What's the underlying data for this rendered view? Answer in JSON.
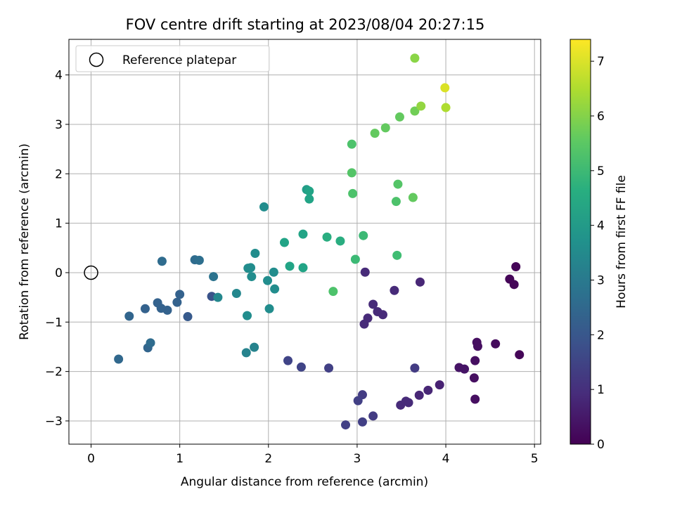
{
  "chart_data": {
    "type": "scatter",
    "title": "FOV centre drift starting at 2023/08/04 20:27:15",
    "xlabel": "Angular distance from reference (arcmin)",
    "ylabel": "Rotation from reference (arcmin)",
    "colorbar_label": "Hours from first FF file",
    "xlim": [
      -0.25,
      5.07
    ],
    "ylim": [
      -3.47,
      4.72
    ],
    "x_ticks": [
      0,
      1,
      2,
      3,
      4,
      5
    ],
    "y_ticks": [
      -3,
      -2,
      -1,
      0,
      1,
      2,
      3,
      4
    ],
    "color_range": [
      0,
      7.4
    ],
    "color_ticks": [
      0,
      1,
      2,
      3,
      4,
      5,
      6,
      7
    ],
    "colormap": "viridis",
    "grid": true,
    "legend_position": "top-left",
    "reference": {
      "label": "Reference platepar",
      "x": 0,
      "y": 0
    },
    "points": [
      {
        "x": 4.79,
        "y": 0.12,
        "t": 0.1
      },
      {
        "x": 4.72,
        "y": -0.13,
        "t": 0.1
      },
      {
        "x": 4.77,
        "y": -0.24,
        "t": 0.1
      },
      {
        "x": 4.83,
        "y": -1.66,
        "t": 0.1
      },
      {
        "x": 4.56,
        "y": -1.44,
        "t": 0.2
      },
      {
        "x": 4.35,
        "y": -1.41,
        "t": 0.3
      },
      {
        "x": 4.36,
        "y": -1.49,
        "t": 0.3
      },
      {
        "x": 4.33,
        "y": -1.78,
        "t": 0.3
      },
      {
        "x": 4.32,
        "y": -2.13,
        "t": 0.3
      },
      {
        "x": 4.33,
        "y": -2.56,
        "t": 0.3
      },
      {
        "x": 4.15,
        "y": -1.92,
        "t": 0.4
      },
      {
        "x": 4.21,
        "y": -1.95,
        "t": 0.4
      },
      {
        "x": 3.93,
        "y": -2.27,
        "t": 0.7
      },
      {
        "x": 3.8,
        "y": -2.38,
        "t": 0.8
      },
      {
        "x": 3.7,
        "y": -2.48,
        "t": 0.8
      },
      {
        "x": 3.71,
        "y": -0.19,
        "t": 0.8
      },
      {
        "x": 3.49,
        "y": -2.68,
        "t": 0.9
      },
      {
        "x": 3.58,
        "y": -2.63,
        "t": 0.9
      },
      {
        "x": 3.55,
        "y": -2.6,
        "t": 0.9
      },
      {
        "x": 3.42,
        "y": -0.36,
        "t": 0.9
      },
      {
        "x": 3.29,
        "y": -0.85,
        "t": 0.9
      },
      {
        "x": 3.23,
        "y": -0.79,
        "t": 0.9
      },
      {
        "x": 3.18,
        "y": -0.64,
        "t": 0.9
      },
      {
        "x": 3.12,
        "y": -0.92,
        "t": 0.9
      },
      {
        "x": 3.08,
        "y": -1.04,
        "t": 0.9
      },
      {
        "x": 3.09,
        "y": 0.01,
        "t": 0.9
      },
      {
        "x": 3.65,
        "y": -1.93,
        "t": 1.3
      },
      {
        "x": 3.18,
        "y": -2.9,
        "t": 1.3
      },
      {
        "x": 3.06,
        "y": -2.47,
        "t": 1.3
      },
      {
        "x": 3.01,
        "y": -2.59,
        "t": 1.4
      },
      {
        "x": 3.06,
        "y": -3.02,
        "t": 1.4
      },
      {
        "x": 2.87,
        "y": -3.08,
        "t": 1.4
      },
      {
        "x": 2.68,
        "y": -1.93,
        "t": 1.4
      },
      {
        "x": 2.37,
        "y": -1.91,
        "t": 1.5
      },
      {
        "x": 2.22,
        "y": -1.78,
        "t": 1.5
      },
      {
        "x": 1.36,
        "y": -0.48,
        "t": 1.9
      },
      {
        "x": 1.09,
        "y": -0.89,
        "t": 2.1
      },
      {
        "x": 1.0,
        "y": -0.44,
        "t": 2.3
      },
      {
        "x": 0.97,
        "y": -0.6,
        "t": 2.3
      },
      {
        "x": 0.86,
        "y": -0.76,
        "t": 2.3
      },
      {
        "x": 0.79,
        "y": -0.72,
        "t": 2.3
      },
      {
        "x": 0.75,
        "y": -0.61,
        "t": 2.3
      },
      {
        "x": 0.61,
        "y": -0.73,
        "t": 2.3
      },
      {
        "x": 0.43,
        "y": -0.88,
        "t": 2.4
      },
      {
        "x": 0.31,
        "y": -1.75,
        "t": 2.5
      },
      {
        "x": 0.64,
        "y": -1.52,
        "t": 2.4
      },
      {
        "x": 0.67,
        "y": -1.42,
        "t": 2.6
      },
      {
        "x": 0.8,
        "y": 0.23,
        "t": 2.6
      },
      {
        "x": 1.17,
        "y": 0.26,
        "t": 2.6
      },
      {
        "x": 1.22,
        "y": 0.25,
        "t": 2.7
      },
      {
        "x": 1.38,
        "y": -0.08,
        "t": 2.8
      },
      {
        "x": 1.43,
        "y": -0.5,
        "t": 3.4
      },
      {
        "x": 1.64,
        "y": -0.42,
        "t": 3.4
      },
      {
        "x": 1.75,
        "y": -1.62,
        "t": 3.3
      },
      {
        "x": 1.84,
        "y": -1.51,
        "t": 3.3
      },
      {
        "x": 1.76,
        "y": -0.87,
        "t": 3.6
      },
      {
        "x": 1.77,
        "y": 0.09,
        "t": 3.6
      },
      {
        "x": 1.8,
        "y": 0.1,
        "t": 3.6
      },
      {
        "x": 1.81,
        "y": -0.08,
        "t": 3.6
      },
      {
        "x": 1.85,
        "y": 0.39,
        "t": 3.6
      },
      {
        "x": 1.95,
        "y": 1.33,
        "t": 3.6
      },
      {
        "x": 1.99,
        "y": -0.16,
        "t": 3.6
      },
      {
        "x": 2.01,
        "y": -0.73,
        "t": 3.6
      },
      {
        "x": 2.06,
        "y": 0.01,
        "t": 3.6
      },
      {
        "x": 2.07,
        "y": -0.33,
        "t": 3.6
      },
      {
        "x": 2.18,
        "y": 0.61,
        "t": 4.3
      },
      {
        "x": 2.24,
        "y": 0.13,
        "t": 4.3
      },
      {
        "x": 2.39,
        "y": 0.1,
        "t": 4.3
      },
      {
        "x": 2.39,
        "y": 0.78,
        "t": 4.3
      },
      {
        "x": 2.43,
        "y": 1.68,
        "t": 4.1
      },
      {
        "x": 2.46,
        "y": 1.65,
        "t": 4.3
      },
      {
        "x": 2.46,
        "y": 1.49,
        "t": 4.3
      },
      {
        "x": 2.66,
        "y": 0.72,
        "t": 4.6
      },
      {
        "x": 2.81,
        "y": 0.64,
        "t": 4.6
      },
      {
        "x": 2.73,
        "y": -0.38,
        "t": 5.3
      },
      {
        "x": 2.94,
        "y": 2.02,
        "t": 5.4
      },
      {
        "x": 2.94,
        "y": 2.6,
        "t": 5.3
      },
      {
        "x": 2.95,
        "y": 1.6,
        "t": 5.3
      },
      {
        "x": 2.98,
        "y": 0.27,
        "t": 5.0
      },
      {
        "x": 3.07,
        "y": 0.75,
        "t": 5.0
      },
      {
        "x": 3.2,
        "y": 2.82,
        "t": 5.6
      },
      {
        "x": 3.32,
        "y": 2.93,
        "t": 5.6
      },
      {
        "x": 3.45,
        "y": 0.35,
        "t": 5.1
      },
      {
        "x": 3.44,
        "y": 1.44,
        "t": 5.3
      },
      {
        "x": 3.46,
        "y": 1.79,
        "t": 5.4
      },
      {
        "x": 3.48,
        "y": 3.15,
        "t": 5.6
      },
      {
        "x": 3.63,
        "y": 1.52,
        "t": 5.6
      },
      {
        "x": 3.65,
        "y": 3.27,
        "t": 5.8
      },
      {
        "x": 3.72,
        "y": 3.37,
        "t": 6.2
      },
      {
        "x": 3.65,
        "y": 4.34,
        "t": 6.1
      },
      {
        "x": 3.99,
        "y": 3.74,
        "t": 7.0
      },
      {
        "x": 4.0,
        "y": 3.34,
        "t": 6.5
      }
    ]
  }
}
